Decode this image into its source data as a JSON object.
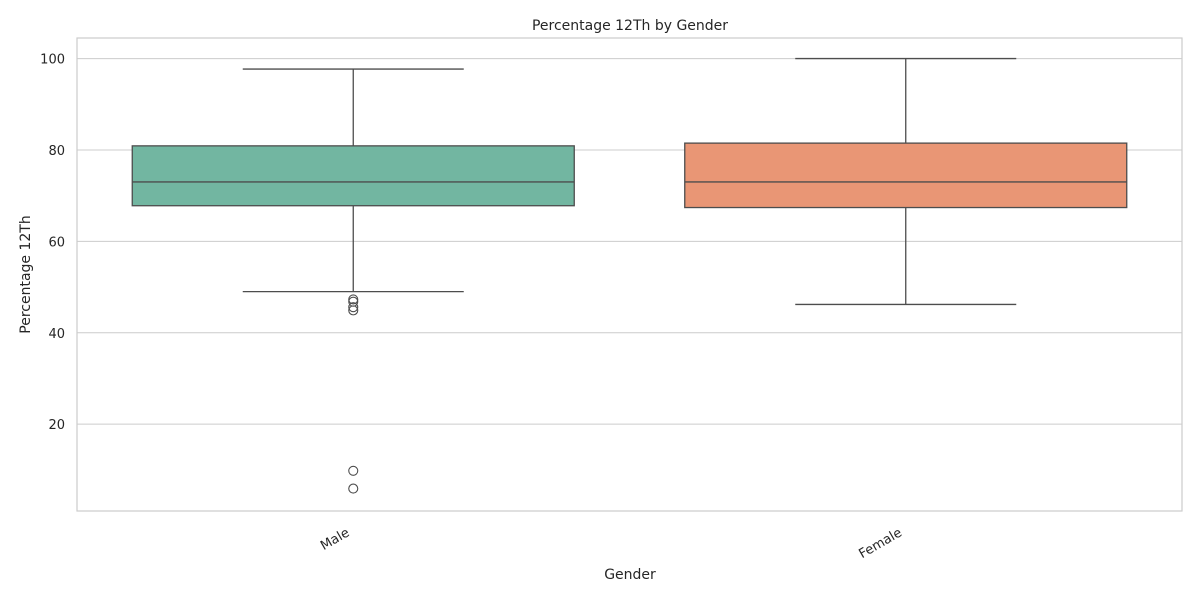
{
  "chart_data": {
    "type": "box",
    "title": "Percentage 12Th by Gender",
    "xlabel": "Gender",
    "ylabel": "Percentage 12Th",
    "categories": [
      "Male",
      "Female"
    ],
    "ylim": [
      1,
      104.5
    ],
    "yticks": [
      20,
      40,
      60,
      80,
      100
    ],
    "grid": true,
    "series": [
      {
        "category": "Male",
        "color": "#72b6a1",
        "whisker_low": 49,
        "q1": 67.8,
        "median": 73,
        "q3": 80.9,
        "whisker_high": 97.7,
        "outliers": [
          47.3,
          46.8,
          45.6,
          44.9,
          9.8,
          5.9
        ]
      },
      {
        "category": "Female",
        "color": "#e99675",
        "whisker_low": 46.2,
        "q1": 67.4,
        "median": 73,
        "q3": 81.5,
        "whisker_high": 100,
        "outliers": []
      }
    ]
  },
  "colors": {
    "grid": "#cccccc",
    "axes_frame": "#cccccc",
    "box_edge": "#4d4d4d"
  }
}
